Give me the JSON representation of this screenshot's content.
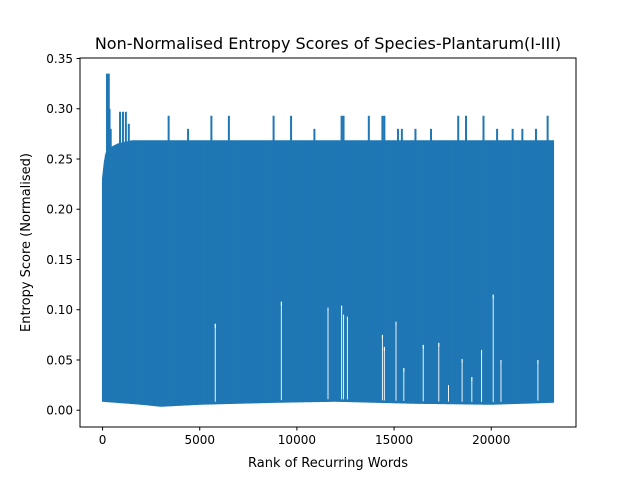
{
  "chart_data": {
    "type": "line",
    "title": "Non-Normalised Entropy Scores of Species-Plantarum(I-III)",
    "xlabel": "Rank of Recurring Words",
    "ylabel": "Entropy Score (Normalised)",
    "xlim": [
      -1160,
      24360
    ],
    "ylim": [
      -0.0167,
      0.3505
    ],
    "x_ticks": [
      0,
      5000,
      10000,
      15000,
      20000
    ],
    "x_tick_labels": [
      "0",
      "5000",
      "10000",
      "15000",
      "20000"
    ],
    "y_ticks": [
      0.0,
      0.05,
      0.1,
      0.15,
      0.2,
      0.25,
      0.3,
      0.35
    ],
    "y_tick_labels": [
      "0.00",
      "0.05",
      "0.10",
      "0.15",
      "0.20",
      "0.25",
      "0.30",
      "0.35"
    ],
    "grid": false,
    "series": [
      {
        "color": "#1f77b4",
        "n_points": 23200,
        "x_range": [
          0,
          23200
        ],
        "dense_band": {
          "upper": [
            [
              0,
              0.23
            ],
            [
              50,
              0.24
            ],
            [
              150,
              0.255
            ],
            [
              300,
              0.26
            ],
            [
              800,
              0.265
            ],
            [
              1500,
              0.268
            ],
            [
              23200,
              0.268
            ]
          ],
          "lower": [
            [
              0,
              0.009
            ],
            [
              2000,
              0.006
            ],
            [
              3000,
              0.004
            ],
            [
              5000,
              0.006
            ],
            [
              9000,
              0.008
            ],
            [
              12000,
              0.009
            ],
            [
              16000,
              0.007
            ],
            [
              20000,
              0.006
            ],
            [
              23200,
              0.008
            ]
          ]
        },
        "upward_spikes": [
          [
            230,
            0.335
          ],
          [
            320,
            0.335
          ],
          [
            360,
            0.3
          ],
          [
            420,
            0.28
          ],
          [
            900,
            0.297
          ],
          [
            1050,
            0.297
          ],
          [
            1200,
            0.297
          ],
          [
            1350,
            0.285
          ],
          [
            3400,
            0.293
          ],
          [
            4400,
            0.28
          ],
          [
            5600,
            0.293
          ],
          [
            6500,
            0.293
          ],
          [
            8800,
            0.293
          ],
          [
            9700,
            0.293
          ],
          [
            10900,
            0.28
          ],
          [
            12300,
            0.293
          ],
          [
            12400,
            0.293
          ],
          [
            13700,
            0.293
          ],
          [
            14400,
            0.293
          ],
          [
            14500,
            0.293
          ],
          [
            15200,
            0.28
          ],
          [
            15400,
            0.28
          ],
          [
            16100,
            0.28
          ],
          [
            16900,
            0.28
          ],
          [
            18300,
            0.293
          ],
          [
            18700,
            0.293
          ],
          [
            19600,
            0.293
          ],
          [
            20300,
            0.28
          ],
          [
            21100,
            0.28
          ],
          [
            21600,
            0.28
          ],
          [
            22300,
            0.28
          ],
          [
            22900,
            0.293
          ]
        ],
        "downward_spikes": [
          [
            5800,
            0.086
          ],
          [
            9200,
            0.108
          ],
          [
            11600,
            0.102
          ],
          [
            12300,
            0.104
          ],
          [
            12400,
            0.095
          ],
          [
            12600,
            0.093
          ],
          [
            14400,
            0.075
          ],
          [
            14500,
            0.063
          ],
          [
            15100,
            0.088
          ],
          [
            15500,
            0.042
          ],
          [
            16500,
            0.065
          ],
          [
            17300,
            0.067
          ],
          [
            17800,
            0.025
          ],
          [
            18500,
            0.051
          ],
          [
            19000,
            0.033
          ],
          [
            19500,
            0.06
          ],
          [
            20100,
            0.115
          ],
          [
            20500,
            0.05
          ],
          [
            22400,
            0.05
          ]
        ]
      }
    ]
  }
}
